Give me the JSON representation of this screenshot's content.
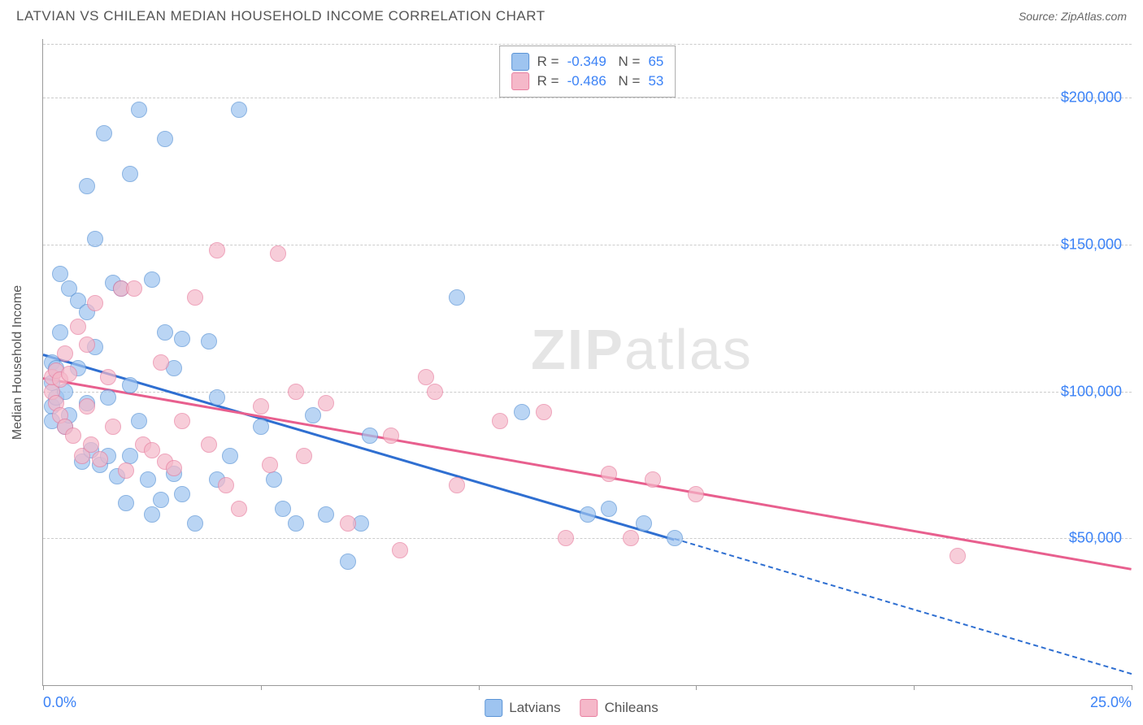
{
  "header": {
    "title": "LATVIAN VS CHILEAN MEDIAN HOUSEHOLD INCOME CORRELATION CHART",
    "source": "Source: ZipAtlas.com"
  },
  "watermark": {
    "left": "ZIP",
    "right": "atlas"
  },
  "chart": {
    "type": "scatter",
    "y_axis_label": "Median Household Income",
    "xlim": [
      0,
      25
    ],
    "ylim": [
      0,
      220000
    ],
    "x_ticks": [
      0,
      5,
      10,
      15,
      20,
      25
    ],
    "x_tick_labels_shown": {
      "0": "0.0%",
      "25": "25.0%"
    },
    "y_gridlines": [
      50000,
      100000,
      150000,
      200000
    ],
    "y_tick_labels": {
      "50000": "$50,000",
      "100000": "$100,000",
      "150000": "$150,000",
      "200000": "$200,000"
    },
    "grid_color": "#cccccc",
    "background_color": "#ffffff",
    "axis_color": "#999999",
    "tick_label_color": "#3b82f6",
    "tick_label_fontsize": 18,
    "axis_title_fontsize": 16,
    "point_radius": 10,
    "point_stroke_width": 1.5,
    "point_fill_opacity": 0.35,
    "series": [
      {
        "name": "Latvians",
        "color_fill": "#9ec4f0",
        "color_stroke": "#5a94d6",
        "R": "-0.349",
        "N": "65",
        "points": [
          [
            0.2,
            110000
          ],
          [
            0.2,
            103000
          ],
          [
            0.2,
            95000
          ],
          [
            0.2,
            90000
          ],
          [
            0.3,
            108000
          ],
          [
            0.3,
            98000
          ],
          [
            0.4,
            140000
          ],
          [
            0.4,
            120000
          ],
          [
            0.5,
            100000
          ],
          [
            0.5,
            88000
          ],
          [
            0.6,
            135000
          ],
          [
            0.6,
            92000
          ],
          [
            0.8,
            131000
          ],
          [
            0.8,
            108000
          ],
          [
            0.9,
            76000
          ],
          [
            1.0,
            170000
          ],
          [
            1.0,
            127000
          ],
          [
            1.0,
            96000
          ],
          [
            1.1,
            80000
          ],
          [
            1.2,
            152000
          ],
          [
            1.2,
            115000
          ],
          [
            1.3,
            75000
          ],
          [
            1.4,
            188000
          ],
          [
            1.5,
            98000
          ],
          [
            1.5,
            78000
          ],
          [
            1.6,
            137000
          ],
          [
            1.7,
            71000
          ],
          [
            1.8,
            135000
          ],
          [
            1.9,
            62000
          ],
          [
            2.0,
            174000
          ],
          [
            2.0,
            102000
          ],
          [
            2.0,
            78000
          ],
          [
            2.2,
            196000
          ],
          [
            2.2,
            90000
          ],
          [
            2.4,
            70000
          ],
          [
            2.5,
            138000
          ],
          [
            2.5,
            58000
          ],
          [
            2.7,
            63000
          ],
          [
            2.8,
            186000
          ],
          [
            2.8,
            120000
          ],
          [
            3.0,
            108000
          ],
          [
            3.0,
            72000
          ],
          [
            3.2,
            118000
          ],
          [
            3.2,
            65000
          ],
          [
            3.5,
            55000
          ],
          [
            3.8,
            117000
          ],
          [
            4.0,
            98000
          ],
          [
            4.0,
            70000
          ],
          [
            4.3,
            78000
          ],
          [
            4.5,
            196000
          ],
          [
            5.0,
            88000
          ],
          [
            5.3,
            70000
          ],
          [
            5.5,
            60000
          ],
          [
            5.8,
            55000
          ],
          [
            6.2,
            92000
          ],
          [
            6.5,
            58000
          ],
          [
            7.0,
            42000
          ],
          [
            7.3,
            55000
          ],
          [
            7.5,
            85000
          ],
          [
            9.5,
            132000
          ],
          [
            11.0,
            93000
          ],
          [
            12.5,
            58000
          ],
          [
            13.0,
            60000
          ],
          [
            13.8,
            55000
          ],
          [
            14.5,
            50000
          ]
        ],
        "trend": {
          "start": [
            0,
            113000
          ],
          "solid_end": [
            14.5,
            50000
          ],
          "dashed_end": [
            25,
            4000
          ],
          "color": "#2f6fd1",
          "width": 3
        }
      },
      {
        "name": "Chileans",
        "color_fill": "#f5b8c9",
        "color_stroke": "#e87fa0",
        "R": "-0.486",
        "N": "53",
        "points": [
          [
            0.2,
            100000
          ],
          [
            0.2,
            105000
          ],
          [
            0.3,
            107000
          ],
          [
            0.3,
            96000
          ],
          [
            0.4,
            92000
          ],
          [
            0.4,
            104000
          ],
          [
            0.5,
            113000
          ],
          [
            0.5,
            88000
          ],
          [
            0.6,
            106000
          ],
          [
            0.7,
            85000
          ],
          [
            0.8,
            122000
          ],
          [
            0.9,
            78000
          ],
          [
            1.0,
            116000
          ],
          [
            1.0,
            95000
          ],
          [
            1.1,
            82000
          ],
          [
            1.2,
            130000
          ],
          [
            1.3,
            77000
          ],
          [
            1.5,
            105000
          ],
          [
            1.6,
            88000
          ],
          [
            1.8,
            135000
          ],
          [
            1.9,
            73000
          ],
          [
            2.1,
            135000
          ],
          [
            2.3,
            82000
          ],
          [
            2.5,
            80000
          ],
          [
            2.7,
            110000
          ],
          [
            2.8,
            76000
          ],
          [
            3.0,
            74000
          ],
          [
            3.2,
            90000
          ],
          [
            3.5,
            132000
          ],
          [
            3.8,
            82000
          ],
          [
            4.0,
            148000
          ],
          [
            4.2,
            68000
          ],
          [
            4.5,
            60000
          ],
          [
            5.0,
            95000
          ],
          [
            5.2,
            75000
          ],
          [
            5.4,
            147000
          ],
          [
            5.8,
            100000
          ],
          [
            6.0,
            78000
          ],
          [
            6.5,
            96000
          ],
          [
            7.0,
            55000
          ],
          [
            8.0,
            85000
          ],
          [
            8.2,
            46000
          ],
          [
            8.8,
            105000
          ],
          [
            9.0,
            100000
          ],
          [
            9.5,
            68000
          ],
          [
            10.5,
            90000
          ],
          [
            11.5,
            93000
          ],
          [
            12.0,
            50000
          ],
          [
            13.0,
            72000
          ],
          [
            13.5,
            50000
          ],
          [
            14.0,
            70000
          ],
          [
            15.0,
            65000
          ],
          [
            21.0,
            44000
          ]
        ],
        "trend": {
          "start": [
            0,
            105000
          ],
          "solid_end": [
            25,
            40000
          ],
          "dashed_end": null,
          "color": "#e85f8e",
          "width": 3
        }
      }
    ],
    "legend": {
      "position": "bottom-center",
      "swatch_size": 22,
      "fontsize": 17
    },
    "stats_box": {
      "position": "top-center",
      "border_color": "#aaaaaa",
      "fontsize": 17,
      "value_color": "#3b82f6"
    }
  }
}
